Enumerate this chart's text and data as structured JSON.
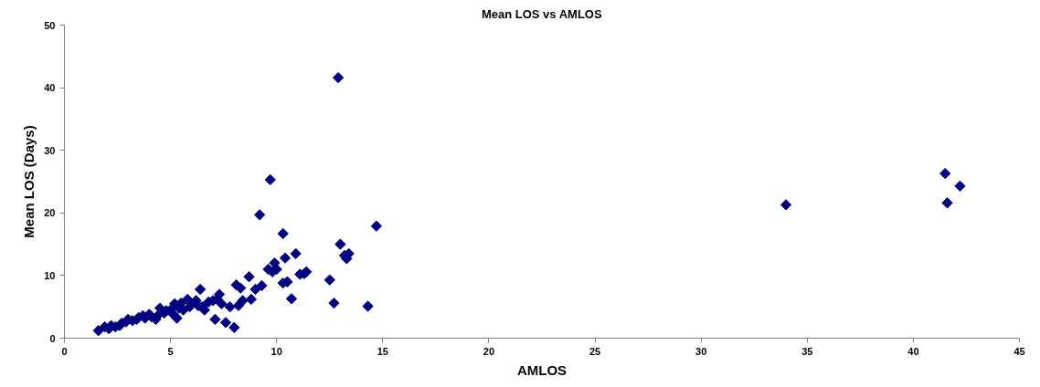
{
  "chart_data": {
    "type": "scatter",
    "title": "Mean LOS vs AMLOS",
    "xlabel": "AMLOS",
    "ylabel": "Mean LOS (Days)",
    "xlim": [
      0,
      45
    ],
    "xticks": [
      0,
      5,
      10,
      15,
      20,
      25,
      30,
      35,
      40,
      45
    ],
    "ylim": [
      0,
      50
    ],
    "yticks": [
      0,
      10,
      20,
      30,
      40,
      50
    ],
    "grid": false,
    "marker": "diamond",
    "series": [
      {
        "color": "#000080",
        "x": [
          1.6,
          1.9,
          2.1,
          2.2,
          2.4,
          2.6,
          2.7,
          2.9,
          3.0,
          3.2,
          3.4,
          3.5,
          3.7,
          3.8,
          4.0,
          4.1,
          4.3,
          4.4,
          4.5,
          4.7,
          4.8,
          5.0,
          5.1,
          5.2,
          5.3,
          5.4,
          5.5,
          5.6,
          5.8,
          5.9,
          6.0,
          6.2,
          6.3,
          6.4,
          6.5,
          6.6,
          6.8,
          7.0,
          7.1,
          7.2,
          7.3,
          7.4,
          7.6,
          7.8,
          8.0,
          8.1,
          8.2,
          8.3,
          8.4,
          8.7,
          8.8,
          9.0,
          9.2,
          9.3,
          9.6,
          9.7,
          9.8,
          9.9,
          10.0,
          10.3,
          10.3,
          10.4,
          10.5,
          10.7,
          10.9,
          11.1,
          11.3,
          11.4,
          12.5,
          12.7,
          12.9,
          13.0,
          13.2,
          13.3,
          13.4,
          14.3,
          14.7,
          34.0,
          41.5,
          41.6,
          42.2
        ],
        "values": [
          1.2,
          1.8,
          1.5,
          2.0,
          1.8,
          2.0,
          2.4,
          2.6,
          3.0,
          2.8,
          3.0,
          3.3,
          3.6,
          3.2,
          3.8,
          3.4,
          3.0,
          3.6,
          4.8,
          4.0,
          4.4,
          4.5,
          3.9,
          5.5,
          3.2,
          4.8,
          5.6,
          4.5,
          6.2,
          5.0,
          5.5,
          6.0,
          5.2,
          7.8,
          5.0,
          4.5,
          5.8,
          6.0,
          3.0,
          6.2,
          7.0,
          5.5,
          2.5,
          5.0,
          1.7,
          8.5,
          5.2,
          8.0,
          6.0,
          9.8,
          6.2,
          7.8,
          19.7,
          8.4,
          11.0,
          25.3,
          10.6,
          12.0,
          11.0,
          16.7,
          8.8,
          12.8,
          9.0,
          6.3,
          13.5,
          10.2,
          10.3,
          10.6,
          9.3,
          5.6,
          41.6,
          15.0,
          13.2,
          12.7,
          13.5,
          5.1,
          17.9,
          21.3,
          26.3,
          21.6,
          24.3
        ]
      }
    ]
  }
}
